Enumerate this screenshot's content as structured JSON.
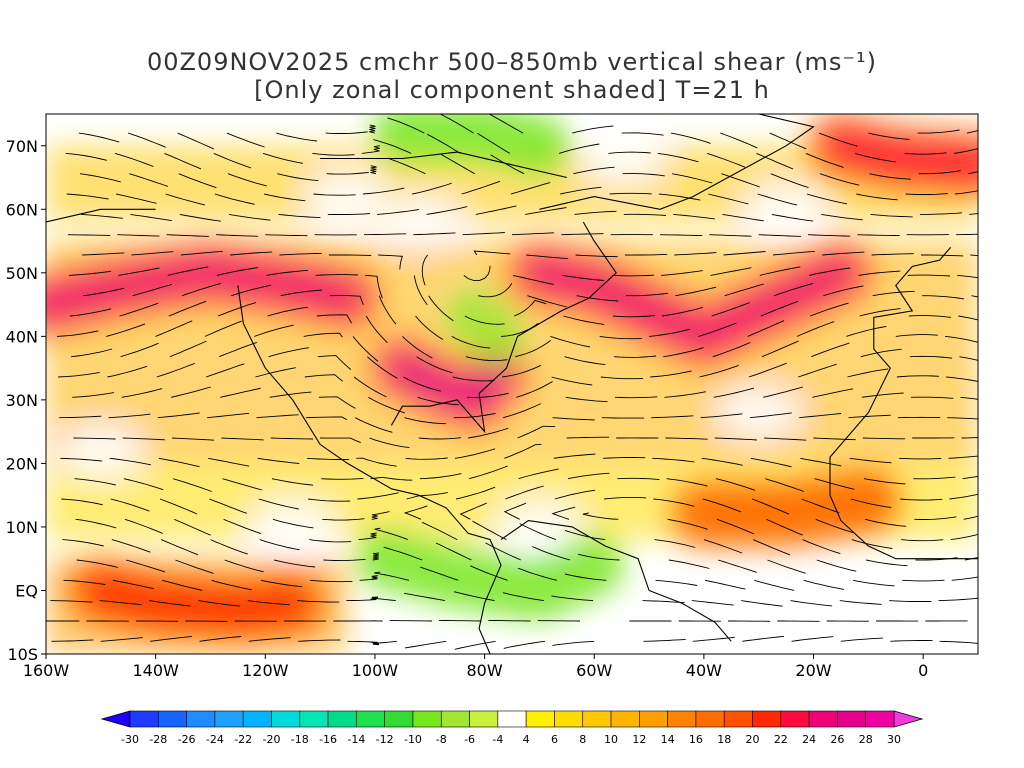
{
  "title": {
    "line1": "00Z09NOV2025 cmchr 500–850mb vertical shear (ms⁻¹)",
    "line2": "[Only zonal component shaded] T=21 h"
  },
  "map": {
    "lon_range": [
      -160,
      10
    ],
    "lat_range": [
      -10,
      75
    ],
    "lon_ticks": [
      {
        "value": -160,
        "label": "160W"
      },
      {
        "value": -140,
        "label": "140W"
      },
      {
        "value": -120,
        "label": "120W"
      },
      {
        "value": -100,
        "label": "100W"
      },
      {
        "value": -80,
        "label": "80W"
      },
      {
        "value": -60,
        "label": "60W"
      },
      {
        "value": -40,
        "label": "40W"
      },
      {
        "value": -20,
        "label": "20W"
      },
      {
        "value": 0,
        "label": "0"
      }
    ],
    "lat_ticks": [
      {
        "value": 70,
        "label": "70N"
      },
      {
        "value": 60,
        "label": "60N"
      },
      {
        "value": 50,
        "label": "50N"
      },
      {
        "value": 40,
        "label": "40N"
      },
      {
        "value": 30,
        "label": "30N"
      },
      {
        "value": 20,
        "label": "20N"
      },
      {
        "value": 10,
        "label": "10N"
      },
      {
        "value": 0,
        "label": "EQ"
      },
      {
        "value": -10,
        "label": "10S"
      }
    ]
  },
  "colorbar": {
    "labels": [
      "-30",
      "-28",
      "-26",
      "-24",
      "-22",
      "-20",
      "-18",
      "-16",
      "-14",
      "-12",
      "-10",
      "-8",
      "-6",
      "-4",
      "4",
      "6",
      "8",
      "10",
      "12",
      "14",
      "16",
      "18",
      "20",
      "22",
      "24",
      "26",
      "28",
      "30"
    ],
    "colors": [
      "#1e3cff",
      "#1464ff",
      "#1e8cff",
      "#1ea0ff",
      "#00b4ff",
      "#00dcdc",
      "#00e6b4",
      "#00dc8c",
      "#1ee050",
      "#32dc32",
      "#78e61e",
      "#a0e632",
      "#c8f03c",
      "#ffffff",
      "#fff000",
      "#ffdc00",
      "#ffc800",
      "#ffb400",
      "#ffa000",
      "#ff8200",
      "#ff6e00",
      "#ff5000",
      "#ff2800",
      "#ff0a3c",
      "#f00078",
      "#e6008c",
      "#f000a0"
    ],
    "low_arrow_color": "#1e00ff",
    "high_arrow_color": "#f03cdc"
  },
  "features": {
    "jet_streams": [
      {
        "level": 24,
        "lon_lat": [
          [
            -160,
            45
          ],
          [
            -145,
            48
          ],
          [
            -130,
            50
          ],
          [
            -115,
            48
          ],
          [
            -105,
            46
          ]
        ]
      },
      {
        "level": 26,
        "lon_lat": [
          [
            -95,
            35
          ],
          [
            -88,
            32
          ],
          [
            -82,
            30
          ],
          [
            -78,
            34
          ]
        ]
      },
      {
        "level": 24,
        "lon_lat": [
          [
            -70,
            50
          ],
          [
            -60,
            48
          ],
          [
            -50,
            44
          ],
          [
            -40,
            40
          ],
          [
            -30,
            44
          ],
          [
            -15,
            50
          ]
        ]
      },
      {
        "level": 20,
        "lon_lat": [
          [
            -150,
            0
          ],
          [
            -140,
            -2
          ],
          [
            -125,
            -3
          ],
          [
            -115,
            -2
          ]
        ]
      },
      {
        "level": 22,
        "lon_lat": [
          [
            -15,
            70
          ],
          [
            -5,
            68
          ],
          [
            10,
            67
          ]
        ]
      },
      {
        "level": 16,
        "lon_lat": [
          [
            -40,
            12
          ],
          [
            -25,
            12
          ],
          [
            -10,
            14
          ]
        ]
      }
    ],
    "easterly_zones": [
      {
        "level": -10,
        "lon_lat": [
          [
            -98,
            5
          ],
          [
            -85,
            2
          ],
          [
            -70,
            0
          ],
          [
            -60,
            4
          ]
        ]
      },
      {
        "level": -8,
        "lon_lat": [
          [
            -82,
            43
          ],
          [
            -78,
            40
          ]
        ]
      },
      {
        "level": -10,
        "lon_lat": [
          [
            -95,
            72
          ],
          [
            -80,
            72
          ],
          [
            -70,
            70
          ]
        ]
      }
    ]
  }
}
